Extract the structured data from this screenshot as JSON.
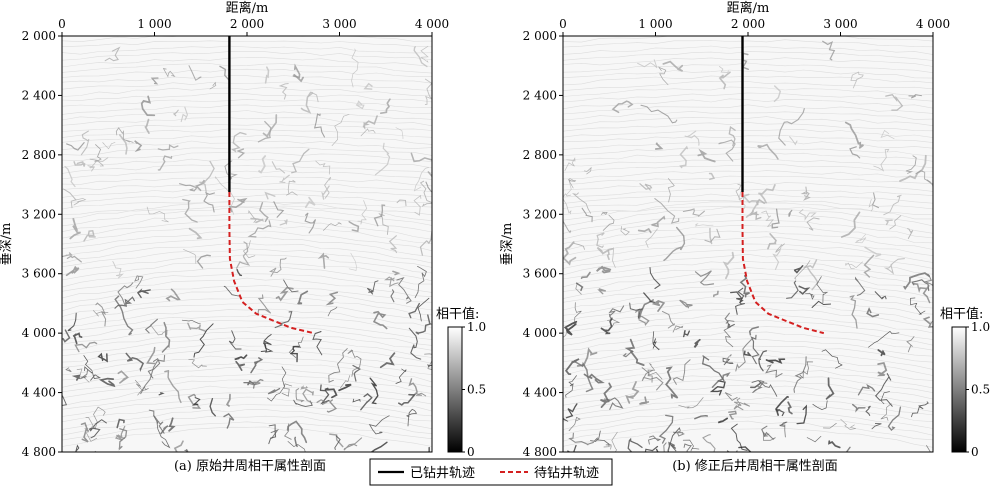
{
  "panel_a_caption": "(a) 原始井周相干属性剖面",
  "panel_b_caption": "(b) 修正后井周相干属性剖面",
  "legend": {
    "drilled": "已钻井轨迹",
    "planned": "待钻井轨迹"
  },
  "colors": {
    "drilled": "#000000",
    "planned": "#d42020",
    "background": "#ffffff"
  },
  "chart_data": [
    {
      "type": "heatmap",
      "title": "(a) 原始井周相干属性剖面",
      "xlabel": "距离/m",
      "ylabel": "垂深/m",
      "xlim": [
        0,
        4000
      ],
      "ylim": [
        2000,
        4800
      ],
      "y_inverted": true,
      "xticks": [
        "0",
        "1 000",
        "2 000",
        "3 000",
        "4 000"
      ],
      "yticks": [
        "2 000",
        "2 400",
        "2 800",
        "3 200",
        "3 600",
        "4 000",
        "4 400",
        "4 800"
      ],
      "colorbar": {
        "title": "相干值:",
        "ticks": [
          "1.0",
          "0.5",
          "0"
        ],
        "range": [
          0,
          1
        ]
      },
      "series": [
        {
          "name": "已钻井轨迹",
          "style": "solid",
          "points": [
            [
              1810,
              2000
            ],
            [
              1810,
              3050
            ]
          ]
        },
        {
          "name": "待钻井轨迹",
          "style": "dashed",
          "points": [
            [
              1810,
              3050
            ],
            [
              1810,
              3300
            ],
            [
              1815,
              3500
            ],
            [
              1860,
              3650
            ],
            [
              1950,
              3790
            ],
            [
              2100,
              3870
            ],
            [
              2300,
              3920
            ],
            [
              2480,
              3965
            ],
            [
              2720,
              4000
            ]
          ]
        }
      ]
    },
    {
      "type": "heatmap",
      "title": "(b) 修正后井周相干属性剖面",
      "xlabel": "距离/m",
      "ylabel": "垂深/m",
      "xlim": [
        0,
        4000
      ],
      "ylim": [
        2000,
        4800
      ],
      "y_inverted": true,
      "xticks": [
        "0",
        "1 000",
        "2 000",
        "3 000",
        "4 000"
      ],
      "yticks": [
        "2 000",
        "2 400",
        "2 800",
        "3 200",
        "3 600",
        "4 000",
        "4 400",
        "4 800"
      ],
      "colorbar": {
        "title": "相干值:",
        "ticks": [
          "1.0",
          "0.5",
          "0"
        ],
        "range": [
          0,
          1
        ]
      },
      "series": [
        {
          "name": "已钻井轨迹",
          "style": "solid",
          "points": [
            [
              1940,
              2000
            ],
            [
              1940,
              3050
            ]
          ]
        },
        {
          "name": "待钻井轨迹",
          "style": "dashed",
          "points": [
            [
              1940,
              3050
            ],
            [
              1940,
              3300
            ],
            [
              1945,
              3500
            ],
            [
              1990,
              3650
            ],
            [
              2080,
              3790
            ],
            [
              2220,
              3870
            ],
            [
              2420,
              3920
            ],
            [
              2600,
              3965
            ],
            [
              2820,
              4000
            ]
          ]
        }
      ]
    }
  ]
}
